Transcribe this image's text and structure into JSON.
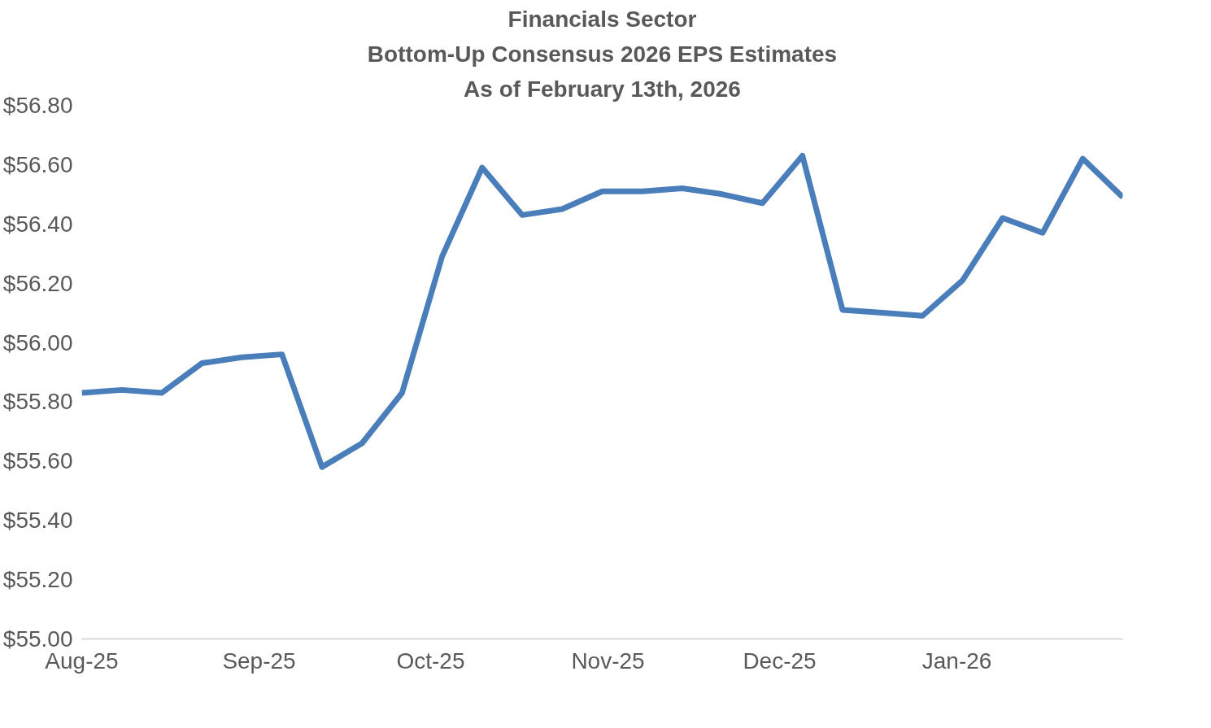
{
  "chart_data": {
    "type": "line",
    "title": "Financials Sector",
    "subtitle": "Bottom-Up Consensus 2026 EPS Estimates",
    "annotations": [
      "As of February 13th, 2026"
    ],
    "x": [
      "2025-08-15",
      "2025-08-22",
      "2025-08-29",
      "2025-09-05",
      "2025-09-12",
      "2025-09-19",
      "2025-09-26",
      "2025-10-03",
      "2025-10-10",
      "2025-10-17",
      "2025-10-24",
      "2025-10-31",
      "2025-11-07",
      "2025-11-14",
      "2025-11-21",
      "2025-11-28",
      "2025-12-05",
      "2025-12-12",
      "2025-12-19",
      "2025-12-26",
      "2026-01-02",
      "2026-01-09",
      "2026-01-16",
      "2026-01-23",
      "2026-01-30",
      "2026-02-06",
      "2026-02-13"
    ],
    "series": [
      {
        "color": "#4a7ebb",
        "values": [
          55.83,
          55.84,
          55.83,
          55.93,
          55.95,
          55.96,
          55.58,
          55.66,
          55.83,
          56.29,
          56.59,
          56.43,
          56.45,
          56.51,
          56.51,
          56.52,
          56.5,
          56.47,
          56.63,
          56.11,
          56.1,
          56.09,
          56.21,
          56.42,
          56.37,
          56.62,
          56.49
        ]
      }
    ],
    "xlim": [
      "2025-08-15",
      "2026-02-13"
    ],
    "xticks": [
      {
        "value": "2025-08-15",
        "label": "Aug-25"
      },
      {
        "value": "2025-09-15",
        "label": "Sep-25"
      },
      {
        "value": "2025-10-15",
        "label": "Oct-25"
      },
      {
        "value": "2025-11-15",
        "label": "Nov-25"
      },
      {
        "value": "2025-12-15",
        "label": "Dec-25"
      },
      {
        "value": "2026-01-15",
        "label": "Jan-26"
      }
    ],
    "ylim": [
      55.0,
      56.8
    ],
    "yticks": [
      {
        "value": 55.0,
        "label": "$55.00"
      },
      {
        "value": 55.2,
        "label": "$55.20"
      },
      {
        "value": 55.4,
        "label": "$55.40"
      },
      {
        "value": 55.6,
        "label": "$55.60"
      },
      {
        "value": 55.8,
        "label": "$55.80"
      },
      {
        "value": 56.0,
        "label": "$56.00"
      },
      {
        "value": 56.2,
        "label": "$56.20"
      },
      {
        "value": 56.4,
        "label": "$56.40"
      },
      {
        "value": 56.6,
        "label": "$56.60"
      },
      {
        "value": 56.8,
        "label": "$56.80"
      }
    ],
    "grid": false,
    "line_style": "solid",
    "marker": "none"
  }
}
